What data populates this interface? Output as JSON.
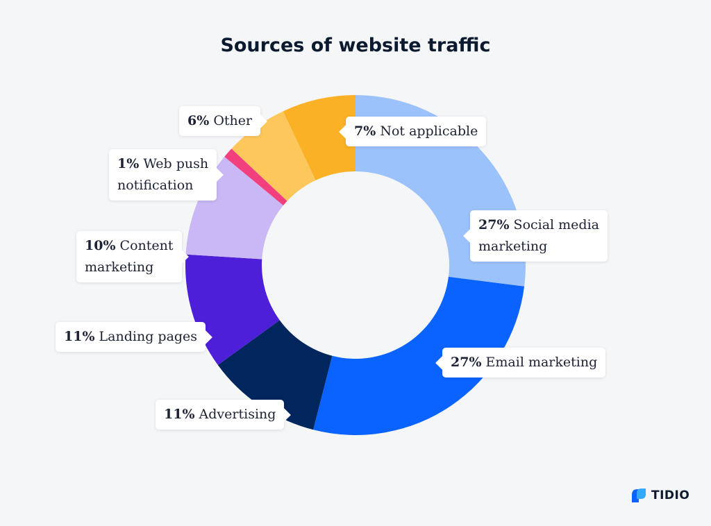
{
  "chart_data": {
    "type": "pie",
    "variant": "donut",
    "title": "Sources of website traffic",
    "slices": [
      {
        "pct": "7%",
        "name": "Not applicable",
        "value": 7,
        "color": "#fbb125"
      },
      {
        "pct": "27%",
        "name": "Social media",
        "name2": "marketing",
        "value": 27,
        "color": "#9cc2fb"
      },
      {
        "pct": "27%",
        "name": "Email marketing",
        "value": 27,
        "color": "#0a63fe"
      },
      {
        "pct": "11%",
        "name": "Advertising",
        "value": 11,
        "color": "#01255d"
      },
      {
        "pct": "11%",
        "name": "Landing pages",
        "value": 11,
        "color": "#4d1fd8"
      },
      {
        "pct": "10%",
        "name": "Content",
        "name2": "marketing",
        "value": 10,
        "color": "#c9b7f6"
      },
      {
        "pct": "1%",
        "name": "Web push",
        "name2": "notification",
        "value": 1,
        "color": "#f23f7e"
      },
      {
        "pct": "6%",
        "name": "Other",
        "value": 6,
        "color": "#fdc75b"
      }
    ]
  },
  "brand": {
    "name": "TIDIO",
    "icon": "tidio-logo-icon"
  }
}
